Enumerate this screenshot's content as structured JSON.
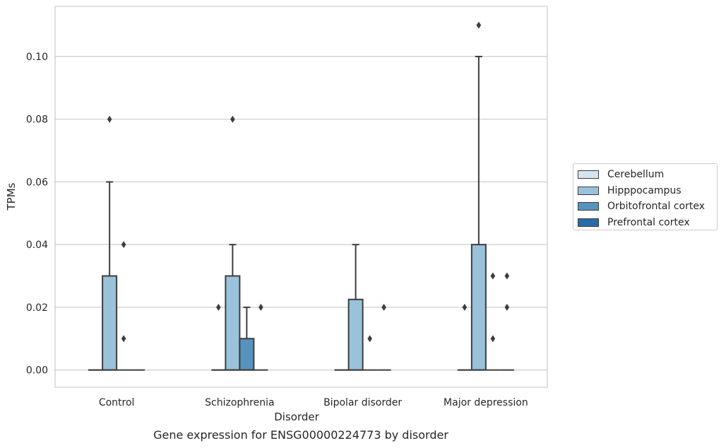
{
  "chart_data": {
    "type": "box",
    "title": "Gene expression for ENSG00000224773 by disorder",
    "xlabel": "Disorder",
    "ylabel": "TPMs",
    "ylim": [
      -0.0055,
      0.116
    ],
    "yticks": [
      0.0,
      0.02,
      0.04,
      0.06,
      0.08,
      0.1
    ],
    "ytick_labels": [
      "0.00",
      "0.02",
      "0.04",
      "0.06",
      "0.08",
      "0.10"
    ],
    "grid": true,
    "legend_position": "right",
    "categories": [
      "Control",
      "Schizophrenia",
      "Bipolar disorder",
      "Major depression"
    ],
    "series": [
      {
        "name": "Cerebellum",
        "color": "#d6e4f0",
        "boxes": [
          null,
          null,
          null,
          null
        ]
      },
      {
        "name": "Hipppocampus",
        "color": "#9ac2da",
        "boxes": [
          {
            "q1": 0.0,
            "median": 0.0,
            "q3": 0.03,
            "whisker_low": 0.0,
            "whisker_high": 0.06,
            "outliers": [
              0.08
            ]
          },
          {
            "q1": 0.0,
            "median": 0.0,
            "q3": 0.03,
            "whisker_low": 0.0,
            "whisker_high": 0.04,
            "outliers": [
              0.08
            ]
          },
          {
            "q1": 0.0,
            "median": 0.0,
            "q3": 0.0225,
            "whisker_low": 0.0,
            "whisker_high": 0.04,
            "outliers": []
          },
          {
            "q1": 0.0,
            "median": 0.0,
            "q3": 0.04,
            "whisker_low": 0.0,
            "whisker_high": 0.1,
            "outliers": [
              0.11
            ]
          }
        ]
      },
      {
        "name": "Orbitofrontal cortex",
        "color": "#5793bf",
        "boxes": [
          {
            "q1": 0.0,
            "median": 0.0,
            "q3": 0.0,
            "whisker_low": 0.0,
            "whisker_high": 0.0,
            "outliers": [
              0.04,
              0.01
            ]
          },
          {
            "q1": 0.0,
            "median": 0.0,
            "q3": 0.01,
            "whisker_low": 0.0,
            "whisker_high": 0.02,
            "outliers": []
          },
          {
            "q1": 0.0,
            "median": 0.0,
            "q3": 0.0,
            "whisker_low": 0.0,
            "whisker_high": 0.0,
            "outliers": [
              0.01
            ]
          },
          {
            "q1": 0.0,
            "median": 0.0,
            "q3": 0.0,
            "whisker_low": 0.0,
            "whisker_high": 0.0,
            "outliers": [
              0.03,
              0.01
            ]
          }
        ]
      },
      {
        "name": "Prefrontal cortex",
        "color": "#2a6aa8",
        "boxes": [
          null,
          {
            "q1": 0.0,
            "median": 0.0,
            "q3": 0.0,
            "whisker_low": 0.0,
            "whisker_high": 0.0,
            "outliers": [
              0.02
            ]
          },
          {
            "q1": 0.0,
            "median": 0.0,
            "q3": 0.0,
            "whisker_low": 0.0,
            "whisker_high": 0.0,
            "outliers": [
              0.02
            ]
          },
          {
            "q1": 0.0,
            "median": 0.0,
            "q3": 0.0,
            "whisker_low": 0.0,
            "whisker_high": 0.0,
            "outliers": [
              0.03,
              0.02
            ]
          }
        ]
      }
    ],
    "cerebellum_outliers": [
      null,
      [
        0.02
      ],
      null,
      [
        0.02
      ]
    ]
  }
}
